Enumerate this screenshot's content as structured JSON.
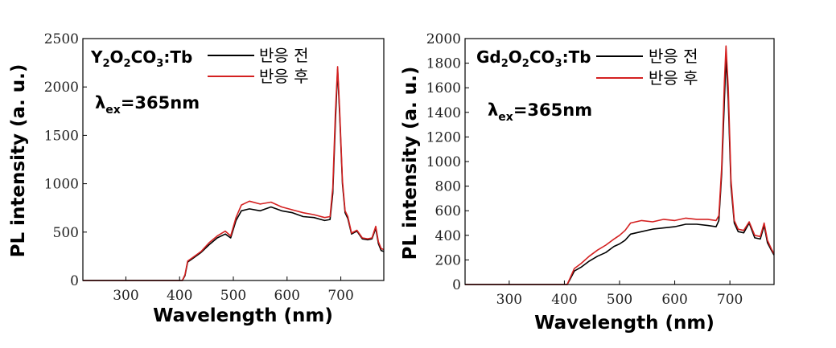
{
  "chart_data": [
    {
      "type": "line",
      "sample_label": {
        "base": "Y",
        "s1": "2",
        "mid": "O",
        "s2": "2",
        "tail": "CO",
        "s3": "3",
        "end": ":Tb"
      },
      "excitation_label": {
        "symbol": "λ",
        "sub": "ex",
        "rest": "=365nm"
      },
      "xlabel": "Wavelength (nm)",
      "ylabel": "PL intensity (a. u.)",
      "xlim": [
        220,
        780
      ],
      "ylim": [
        0,
        2500
      ],
      "xticks": [
        "300",
        "400",
        "500",
        "600",
        "700"
      ],
      "xtick_values": [
        300,
        400,
        500,
        600,
        700
      ],
      "yticks": [
        "0",
        "500",
        "1000",
        "1500",
        "2000",
        "2500"
      ],
      "ytick_values": [
        0,
        500,
        1000,
        1500,
        2000,
        2500
      ],
      "legend_position": "top-right",
      "series": [
        {
          "name": "반응 전",
          "color": "#000000",
          "points": [
            [
              220,
              0
            ],
            [
              405,
              0
            ],
            [
              410,
              50
            ],
            [
              415,
              190
            ],
            [
              425,
              230
            ],
            [
              440,
              290
            ],
            [
              455,
              370
            ],
            [
              470,
              440
            ],
            [
              485,
              480
            ],
            [
              495,
              440
            ],
            [
              505,
              620
            ],
            [
              515,
              720
            ],
            [
              530,
              740
            ],
            [
              550,
              720
            ],
            [
              570,
              760
            ],
            [
              590,
              720
            ],
            [
              610,
              700
            ],
            [
              630,
              660
            ],
            [
              650,
              650
            ],
            [
              670,
              620
            ],
            [
              680,
              630
            ],
            [
              685,
              900
            ],
            [
              690,
              1650
            ],
            [
              694,
              2180
            ],
            [
              698,
              1700
            ],
            [
              703,
              1000
            ],
            [
              708,
              700
            ],
            [
              713,
              640
            ],
            [
              720,
              480
            ],
            [
              730,
              510
            ],
            [
              740,
              430
            ],
            [
              750,
              420
            ],
            [
              758,
              430
            ],
            [
              765,
              540
            ],
            [
              770,
              380
            ],
            [
              775,
              310
            ],
            [
              780,
              300
            ]
          ]
        },
        {
          "name": "반응 후",
          "color": "#d42020",
          "points": [
            [
              220,
              0
            ],
            [
              405,
              0
            ],
            [
              410,
              60
            ],
            [
              415,
              200
            ],
            [
              425,
              240
            ],
            [
              440,
              300
            ],
            [
              455,
              390
            ],
            [
              470,
              460
            ],
            [
              485,
              510
            ],
            [
              495,
              460
            ],
            [
              505,
              650
            ],
            [
              515,
              780
            ],
            [
              530,
              820
            ],
            [
              550,
              790
            ],
            [
              570,
              810
            ],
            [
              590,
              760
            ],
            [
              610,
              730
            ],
            [
              630,
              700
            ],
            [
              650,
              680
            ],
            [
              670,
              650
            ],
            [
              680,
              660
            ],
            [
              685,
              960
            ],
            [
              690,
              1750
            ],
            [
              694,
              2210
            ],
            [
              698,
              1750
            ],
            [
              703,
              1030
            ],
            [
              708,
              720
            ],
            [
              713,
              660
            ],
            [
              720,
              490
            ],
            [
              730,
              520
            ],
            [
              740,
              440
            ],
            [
              750,
              430
            ],
            [
              758,
              440
            ],
            [
              765,
              560
            ],
            [
              770,
              400
            ],
            [
              775,
              330
            ],
            [
              780,
              320
            ]
          ]
        }
      ]
    },
    {
      "type": "line",
      "sample_label": {
        "base": "Gd",
        "s1": "2",
        "mid": "O",
        "s2": "2",
        "tail": "CO",
        "s3": "3",
        "end": ":Tb"
      },
      "excitation_label": {
        "symbol": "λ",
        "sub": "ex",
        "rest": "=365nm"
      },
      "xlabel": "Wavelength (nm)",
      "ylabel": "PL intensity (a. u.)",
      "xlim": [
        220,
        780
      ],
      "ylim": [
        0,
        2000
      ],
      "xticks": [
        "300",
        "400",
        "500",
        "600",
        "700"
      ],
      "xtick_values": [
        300,
        400,
        500,
        600,
        700
      ],
      "yticks": [
        "0",
        "200",
        "400",
        "600",
        "800",
        "1000",
        "1200",
        "1400",
        "1600",
        "1800",
        "2000"
      ],
      "ytick_values": [
        0,
        200,
        400,
        600,
        800,
        1000,
        1200,
        1400,
        1600,
        1800,
        2000
      ],
      "legend_position": "top-right",
      "series": [
        {
          "name": "반응 전",
          "color": "#000000",
          "points": [
            [
              220,
              0
            ],
            [
              405,
              0
            ],
            [
              410,
              40
            ],
            [
              418,
              110
            ],
            [
              430,
              140
            ],
            [
              445,
              190
            ],
            [
              460,
              230
            ],
            [
              475,
              260
            ],
            [
              490,
              310
            ],
            [
              500,
              330
            ],
            [
              510,
              360
            ],
            [
              520,
              410
            ],
            [
              540,
              430
            ],
            [
              560,
              450
            ],
            [
              580,
              460
            ],
            [
              600,
              470
            ],
            [
              620,
              490
            ],
            [
              640,
              490
            ],
            [
              660,
              480
            ],
            [
              675,
              470
            ],
            [
              680,
              520
            ],
            [
              685,
              900
            ],
            [
              690,
              1500
            ],
            [
              693,
              1850
            ],
            [
              697,
              1500
            ],
            [
              702,
              800
            ],
            [
              708,
              500
            ],
            [
              715,
              430
            ],
            [
              725,
              420
            ],
            [
              735,
              500
            ],
            [
              745,
              380
            ],
            [
              755,
              370
            ],
            [
              762,
              480
            ],
            [
              768,
              340
            ],
            [
              775,
              280
            ],
            [
              780,
              240
            ]
          ]
        },
        {
          "name": "반응 후",
          "color": "#d42020",
          "points": [
            [
              220,
              0
            ],
            [
              405,
              0
            ],
            [
              410,
              50
            ],
            [
              418,
              130
            ],
            [
              430,
              170
            ],
            [
              445,
              230
            ],
            [
              460,
              280
            ],
            [
              475,
              320
            ],
            [
              490,
              370
            ],
            [
              500,
              400
            ],
            [
              510,
              440
            ],
            [
              520,
              500
            ],
            [
              540,
              520
            ],
            [
              560,
              510
            ],
            [
              580,
              530
            ],
            [
              600,
              520
            ],
            [
              620,
              540
            ],
            [
              640,
              530
            ],
            [
              660,
              530
            ],
            [
              675,
              520
            ],
            [
              680,
              560
            ],
            [
              685,
              950
            ],
            [
              690,
              1650
            ],
            [
              693,
              1940
            ],
            [
              697,
              1600
            ],
            [
              702,
              850
            ],
            [
              708,
              520
            ],
            [
              715,
              450
            ],
            [
              725,
              440
            ],
            [
              735,
              510
            ],
            [
              745,
              400
            ],
            [
              755,
              390
            ],
            [
              762,
              500
            ],
            [
              768,
              360
            ],
            [
              775,
              290
            ],
            [
              780,
              250
            ]
          ]
        }
      ]
    }
  ]
}
